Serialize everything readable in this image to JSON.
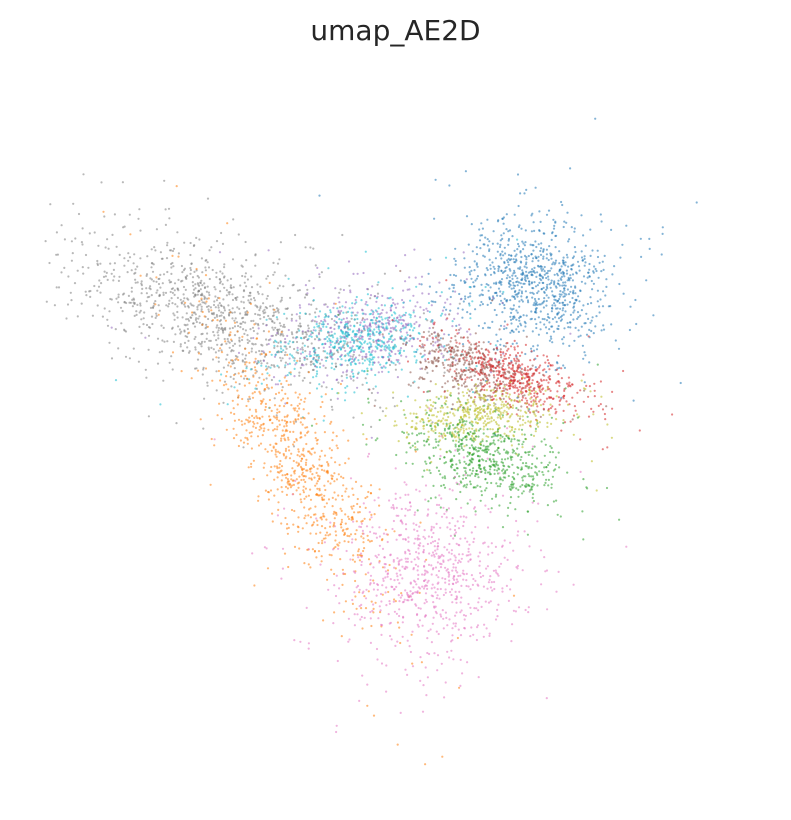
{
  "chart_data": {
    "type": "scatter",
    "title": "umap_AE2D",
    "xlabel": "",
    "ylabel": "",
    "grid": false,
    "axes_visible": false,
    "legend": "none",
    "xlim": [
      0,
      10
    ],
    "ylim": [
      0,
      10
    ],
    "clusters": [
      {
        "color": "#1f77b4",
        "points": 900,
        "center": [
          7.0,
          7.15
        ],
        "spread": [
          0.55,
          0.45
        ],
        "angle": -10
      },
      {
        "color": "#7f7f7f",
        "points": 1100,
        "center": [
          2.5,
          6.7
        ],
        "spread": [
          1.1,
          0.42
        ],
        "angle": -20
      },
      {
        "color": "#9467bd",
        "points": 450,
        "center": [
          4.6,
          6.45
        ],
        "spread": [
          0.3,
          0.62
        ],
        "angle": -80
      },
      {
        "color": "#17becf",
        "points": 500,
        "center": [
          4.45,
          6.3
        ],
        "spread": [
          0.26,
          0.58
        ],
        "angle": -78
      },
      {
        "color": "#8c564b",
        "points": 400,
        "center": [
          6.05,
          5.95
        ],
        "spread": [
          0.42,
          0.2
        ],
        "angle": -20
      },
      {
        "color": "#d62728",
        "points": 500,
        "center": [
          6.75,
          5.8
        ],
        "spread": [
          0.5,
          0.2
        ],
        "angle": -22
      },
      {
        "color": "#bcbd22",
        "points": 450,
        "center": [
          6.2,
          5.25
        ],
        "spread": [
          0.55,
          0.2
        ],
        "angle": 5
      },
      {
        "color": "#2ca02c",
        "points": 600,
        "center": [
          6.3,
          4.6
        ],
        "spread": [
          0.55,
          0.28
        ],
        "angle": -20
      },
      {
        "color": "#ff7f0e",
        "points": 800,
        "center": [
          3.65,
          4.55
        ],
        "spread": [
          1.05,
          0.3
        ],
        "angle": -58
      },
      {
        "color": "#e377c2",
        "points": 750,
        "center": [
          5.5,
          2.95
        ],
        "spread": [
          0.6,
          0.6
        ],
        "angle": 0
      }
    ]
  }
}
